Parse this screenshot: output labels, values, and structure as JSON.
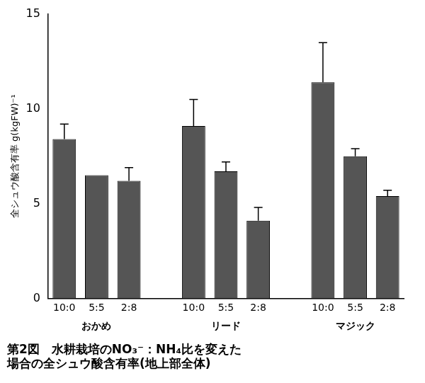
{
  "chart_data": {
    "type": "bar",
    "title": [
      "第2図　水耕栽培のNO₃⁻：NH₄比を変えた",
      "場合の全シュウ酸含有率(地上部全体)"
    ],
    "y_label": "全シュウ酸含有率 g(kgFW)⁻¹",
    "groups": [
      "おかめ",
      "リード",
      "マジック"
    ],
    "categories": [
      "10:0",
      "5:5",
      "2:8"
    ],
    "values": [
      [
        8.4,
        6.5,
        6.2
      ],
      [
        9.1,
        6.7,
        4.1
      ],
      [
        11.4,
        7.5,
        5.4
      ]
    ],
    "errors": [
      [
        0.8,
        0,
        0.7
      ],
      [
        1.4,
        0.5,
        0.7
      ],
      [
        2.1,
        0.4,
        0.3
      ]
    ],
    "color": "#555555",
    "ylim": [
      0,
      15
    ],
    "yticks": [
      0,
      5,
      10,
      15
    ],
    "grid": false
  }
}
